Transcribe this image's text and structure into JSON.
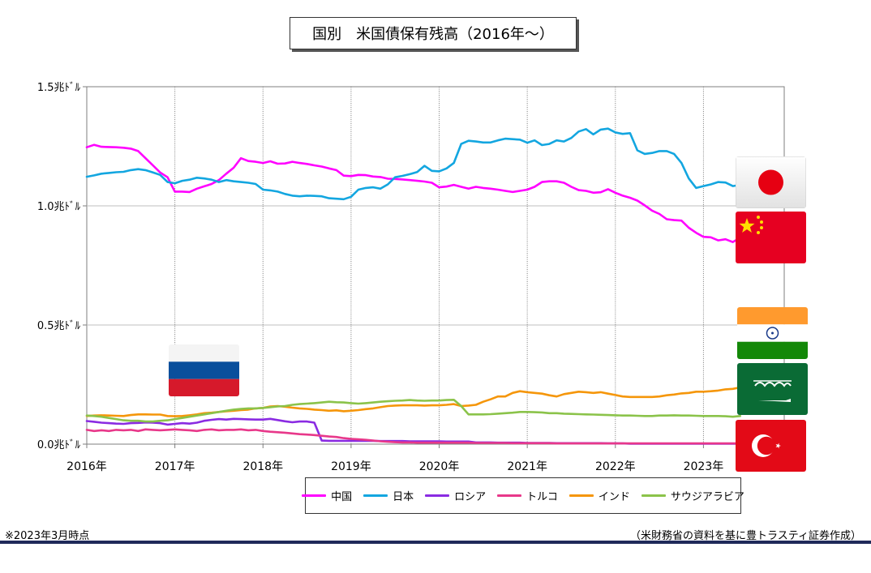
{
  "page": {
    "title": "国別　米国債保有残高（2016年～）",
    "footnote": "※2023年3月時点",
    "source": "（米財務省の資料を基に豊トラスティ証券作成）"
  },
  "flags": [
    {
      "icon": "japan-flag-icon"
    },
    {
      "icon": "china-flag-icon"
    },
    {
      "icon": "india-flag-icon"
    },
    {
      "icon": "saudi-arabia-flag-icon"
    },
    {
      "icon": "turkey-flag-icon"
    },
    {
      "icon": "russia-flag-icon"
    }
  ],
  "chart_data": {
    "type": "line",
    "title": "国別　米国債保有残高（2016年～）",
    "x_start": "2016-01",
    "x_end": "2023-03",
    "x_frequency": "monthly",
    "x_ticks": [
      "2016年",
      "2017年",
      "2018年",
      "2019年",
      "2020年",
      "2021年",
      "2022年",
      "2023年"
    ],
    "y_ticks": [
      "0.0兆ﾄﾞﾙ",
      "0.5兆ﾄﾞﾙ",
      "1.0兆ﾄﾞﾙ",
      "1.5兆ﾄﾞﾙ"
    ],
    "ylim": [
      0,
      1.5
    ],
    "y_unit": "兆ﾄﾞﾙ",
    "grid": true,
    "legend_position": "bottom",
    "series": [
      {
        "name": "中国",
        "color": "#ff00ff",
        "values": [
          1.246,
          1.256,
          1.248,
          1.247,
          1.246,
          1.244,
          1.24,
          1.23,
          1.2,
          1.17,
          1.14,
          1.12,
          1.06,
          1.06,
          1.058,
          1.072,
          1.082,
          1.092,
          1.108,
          1.135,
          1.16,
          1.2,
          1.188,
          1.185,
          1.18,
          1.187,
          1.177,
          1.178,
          1.185,
          1.18,
          1.176,
          1.17,
          1.165,
          1.157,
          1.15,
          1.127,
          1.125,
          1.13,
          1.129,
          1.123,
          1.121,
          1.114,
          1.113,
          1.111,
          1.108,
          1.105,
          1.102,
          1.097,
          1.078,
          1.081,
          1.088,
          1.08,
          1.072,
          1.08,
          1.075,
          1.072,
          1.068,
          1.063,
          1.058,
          1.063,
          1.068,
          1.08,
          1.1,
          1.103,
          1.103,
          1.097,
          1.08,
          1.066,
          1.063,
          1.055,
          1.057,
          1.07,
          1.055,
          1.043,
          1.034,
          1.022,
          1.002,
          0.98,
          0.966,
          0.944,
          0.94,
          0.938,
          0.908,
          0.887,
          0.87,
          0.868,
          0.855,
          0.86,
          0.848,
          0.867
        ]
      },
      {
        "name": "日本",
        "color": "#13a6e0",
        "values": [
          1.122,
          1.128,
          1.135,
          1.138,
          1.141,
          1.143,
          1.15,
          1.154,
          1.15,
          1.14,
          1.13,
          1.1,
          1.095,
          1.105,
          1.11,
          1.118,
          1.115,
          1.11,
          1.1,
          1.108,
          1.103,
          1.1,
          1.097,
          1.092,
          1.068,
          1.065,
          1.06,
          1.05,
          1.043,
          1.04,
          1.043,
          1.042,
          1.04,
          1.032,
          1.03,
          1.028,
          1.038,
          1.068,
          1.075,
          1.078,
          1.072,
          1.09,
          1.12,
          1.126,
          1.133,
          1.142,
          1.168,
          1.147,
          1.145,
          1.157,
          1.18,
          1.26,
          1.273,
          1.27,
          1.266,
          1.266,
          1.275,
          1.282,
          1.28,
          1.278,
          1.265,
          1.275,
          1.255,
          1.26,
          1.275,
          1.27,
          1.285,
          1.312,
          1.322,
          1.3,
          1.32,
          1.324,
          1.308,
          1.302,
          1.305,
          1.233,
          1.218,
          1.222,
          1.23,
          1.23,
          1.218,
          1.18,
          1.115,
          1.075,
          1.083,
          1.09,
          1.1,
          1.098,
          1.083,
          1.088
        ]
      },
      {
        "name": "ロシア",
        "color": "#8a2be2",
        "values": [
          0.097,
          0.094,
          0.09,
          0.088,
          0.086,
          0.085,
          0.088,
          0.089,
          0.091,
          0.09,
          0.088,
          0.082,
          0.085,
          0.088,
          0.086,
          0.09,
          0.098,
          0.102,
          0.105,
          0.103,
          0.106,
          0.105,
          0.104,
          0.103,
          0.103,
          0.106,
          0.101,
          0.096,
          0.092,
          0.095,
          0.095,
          0.09,
          0.015,
          0.014,
          0.014,
          0.014,
          0.014,
          0.014,
          0.014,
          0.014,
          0.013,
          0.013,
          0.013,
          0.013,
          0.012,
          0.012,
          0.012,
          0.012,
          0.012,
          0.011,
          0.011,
          0.011,
          0.011,
          0.007,
          0.007,
          0.007,
          0.006,
          0.006,
          0.006,
          0.006,
          0.005,
          0.005,
          0.005,
          0.005,
          0.004,
          0.004,
          0.004,
          0.004,
          0.004,
          0.004,
          0.004,
          0.003,
          0.003,
          0.003,
          0.002,
          0.002,
          0.002,
          0.002,
          0.002,
          0.002,
          0.002,
          0.002,
          0.002,
          0.002,
          0.002,
          0.002,
          0.002,
          0.002,
          0.002,
          0.002
        ]
      },
      {
        "name": "トルコ",
        "color": "#e8388a",
        "values": [
          0.06,
          0.055,
          0.058,
          0.055,
          0.06,
          0.058,
          0.06,
          0.055,
          0.062,
          0.06,
          0.058,
          0.06,
          0.062,
          0.06,
          0.058,
          0.055,
          0.06,
          0.062,
          0.058,
          0.06,
          0.06,
          0.062,
          0.058,
          0.06,
          0.055,
          0.052,
          0.05,
          0.048,
          0.045,
          0.042,
          0.04,
          0.038,
          0.035,
          0.032,
          0.03,
          0.025,
          0.022,
          0.02,
          0.018,
          0.015,
          0.012,
          0.01,
          0.008,
          0.007,
          0.007,
          0.006,
          0.006,
          0.006,
          0.006,
          0.006,
          0.006,
          0.006,
          0.006,
          0.005,
          0.005,
          0.005,
          0.005,
          0.005,
          0.004,
          0.004,
          0.004,
          0.004,
          0.004,
          0.004,
          0.003,
          0.003,
          0.003,
          0.003,
          0.003,
          0.003,
          0.003,
          0.003,
          0.003,
          0.003,
          0.003,
          0.003,
          0.003,
          0.003,
          0.003,
          0.003,
          0.003,
          0.003,
          0.003,
          0.003,
          0.003,
          0.003,
          0.003,
          0.003,
          0.003,
          0.003
        ]
      },
      {
        "name": "インド",
        "color": "#f5960a",
        "values": [
          0.118,
          0.12,
          0.121,
          0.12,
          0.119,
          0.118,
          0.122,
          0.125,
          0.125,
          0.124,
          0.124,
          0.118,
          0.117,
          0.118,
          0.121,
          0.125,
          0.13,
          0.132,
          0.135,
          0.138,
          0.14,
          0.143,
          0.145,
          0.15,
          0.152,
          0.158,
          0.16,
          0.157,
          0.153,
          0.15,
          0.148,
          0.145,
          0.143,
          0.14,
          0.142,
          0.138,
          0.14,
          0.143,
          0.147,
          0.15,
          0.155,
          0.16,
          0.162,
          0.163,
          0.163,
          0.163,
          0.162,
          0.163,
          0.163,
          0.165,
          0.168,
          0.16,
          0.162,
          0.165,
          0.178,
          0.188,
          0.2,
          0.2,
          0.215,
          0.222,
          0.218,
          0.215,
          0.212,
          0.205,
          0.2,
          0.21,
          0.215,
          0.22,
          0.218,
          0.215,
          0.218,
          0.212,
          0.206,
          0.2,
          0.198,
          0.198,
          0.198,
          0.198,
          0.2,
          0.205,
          0.208,
          0.213,
          0.215,
          0.22,
          0.22,
          0.222,
          0.225,
          0.23,
          0.232,
          0.238
        ]
      },
      {
        "name": "サウジアラビア",
        "color": "#8bc34a",
        "values": [
          0.12,
          0.118,
          0.115,
          0.11,
          0.105,
          0.1,
          0.098,
          0.098,
          0.095,
          0.095,
          0.098,
          0.1,
          0.105,
          0.11,
          0.115,
          0.12,
          0.125,
          0.13,
          0.135,
          0.14,
          0.145,
          0.148,
          0.15,
          0.15,
          0.152,
          0.155,
          0.158,
          0.16,
          0.165,
          0.168,
          0.17,
          0.172,
          0.175,
          0.178,
          0.176,
          0.175,
          0.172,
          0.17,
          0.172,
          0.175,
          0.178,
          0.18,
          0.182,
          0.183,
          0.185,
          0.183,
          0.182,
          0.183,
          0.183,
          0.185,
          0.186,
          0.16,
          0.125,
          0.125,
          0.125,
          0.126,
          0.128,
          0.13,
          0.132,
          0.135,
          0.135,
          0.134,
          0.133,
          0.13,
          0.13,
          0.128,
          0.127,
          0.126,
          0.125,
          0.124,
          0.123,
          0.122,
          0.121,
          0.12,
          0.12,
          0.119,
          0.118,
          0.118,
          0.12,
          0.12,
          0.121,
          0.12,
          0.12,
          0.119,
          0.118,
          0.118,
          0.118,
          0.117,
          0.115,
          0.118
        ]
      }
    ]
  }
}
